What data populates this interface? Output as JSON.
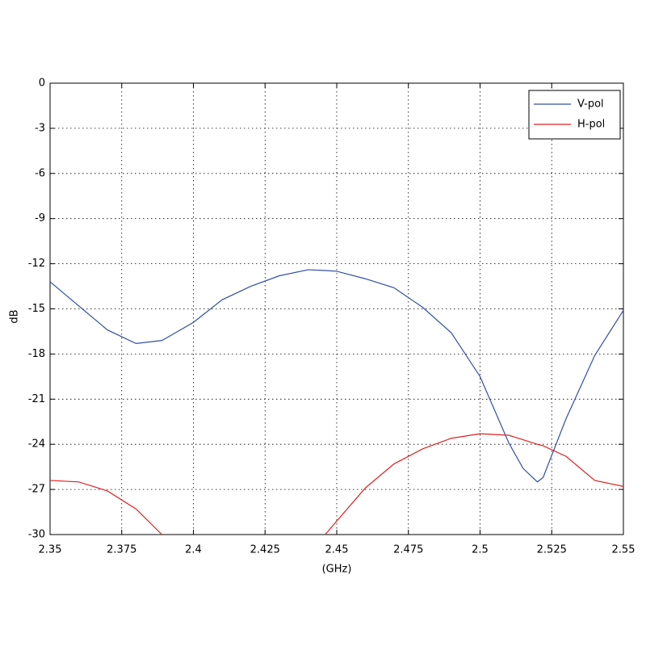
{
  "chart_data": {
    "type": "line",
    "xlabel": "(GHz)",
    "ylabel": "dB",
    "x": [
      2.35,
      2.36,
      2.37,
      2.38,
      2.389,
      2.39,
      2.4,
      2.41,
      2.42,
      2.43,
      2.44,
      2.446,
      2.45,
      2.46,
      2.47,
      2.48,
      2.49,
      2.5,
      2.51,
      2.515,
      2.52,
      2.522,
      2.53,
      2.54,
      2.55
    ],
    "series": [
      {
        "name": "V-pol",
        "color": "#2f4fa8",
        "values": [
          -13.2,
          -14.8,
          -16.4,
          -17.3,
          -17.1,
          -17.0,
          -15.9,
          -14.4,
          -13.5,
          -12.8,
          -12.4,
          -12.45,
          -12.5,
          -13.0,
          -13.6,
          -14.9,
          -16.6,
          -19.5,
          -23.9,
          -25.6,
          -26.5,
          -26.2,
          -22.3,
          -18.1,
          -15.1
        ]
      },
      {
        "name": "H-pol",
        "color": "#e02020",
        "values": [
          -26.4,
          -26.5,
          -27.1,
          -28.3,
          -30,
          null,
          null,
          null,
          null,
          null,
          null,
          -30,
          -29.1,
          -26.9,
          -25.3,
          -24.3,
          -23.6,
          -23.3,
          -23.4,
          -23.7,
          -24.0,
          -24.1,
          -24.8,
          -26.4,
          -26.8
        ]
      }
    ],
    "xlim": [
      2.35,
      2.55
    ],
    "xticks": [
      2.35,
      2.375,
      2.4,
      2.425,
      2.45,
      2.475,
      2.5,
      2.525,
      2.55
    ],
    "ylim": [
      -30,
      0
    ],
    "yticks": [
      -30,
      -27,
      -24,
      -21,
      -18,
      -15,
      -12,
      -9,
      -6,
      -3,
      0
    ],
    "grid": true,
    "legend": "northeast"
  }
}
